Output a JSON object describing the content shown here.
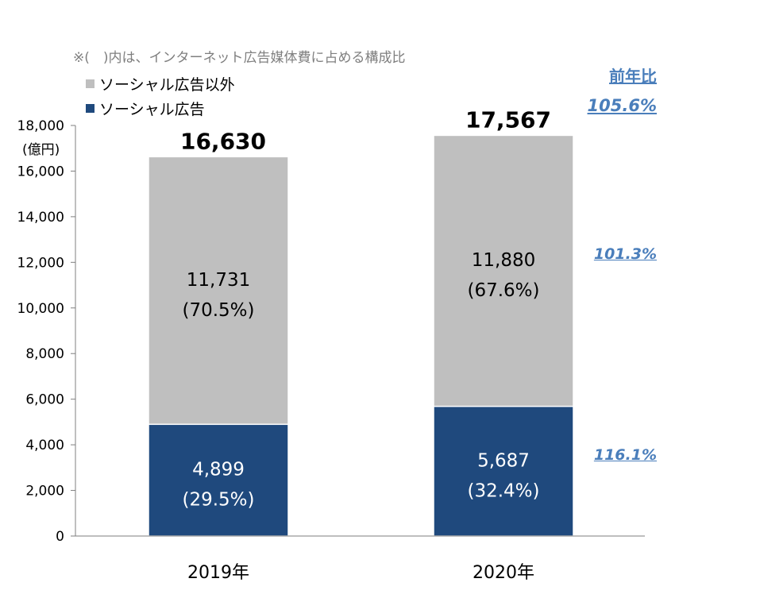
{
  "chart_data": {
    "type": "bar",
    "stacked": true,
    "note": "※(　)内は、インターネット広告媒体費に占める構成比",
    "ylabel": "(億円)",
    "ylim": [
      0,
      18000
    ],
    "yticks": [
      "0",
      "2,000",
      "4,000",
      "6,000",
      "8,000",
      "10,000",
      "12,000",
      "14,000",
      "16,000",
      "18,000"
    ],
    "categories": [
      "2019年",
      "2020年"
    ],
    "totals": [
      "16,630",
      "17,567"
    ],
    "series": [
      {
        "name": "ソーシャル広告",
        "color": "#1f497d",
        "values": [
          4899,
          5687
        ],
        "labels": [
          "4,899",
          "5,687"
        ],
        "shares": [
          "(29.5%)",
          "(32.4%)"
        ]
      },
      {
        "name": "ソーシャル広告以外",
        "color": "#bfbfbf",
        "values": [
          11731,
          11880
        ],
        "labels": [
          "11,731",
          "11,880"
        ],
        "shares": [
          "(70.5%)",
          "(67.6%)"
        ]
      }
    ],
    "yoy": {
      "header": "前年比",
      "total": "105.6%",
      "other": "101.3%",
      "social": "116.1%",
      "color": "#4a7ebb"
    },
    "grid": false,
    "legend_position": "top-left"
  }
}
